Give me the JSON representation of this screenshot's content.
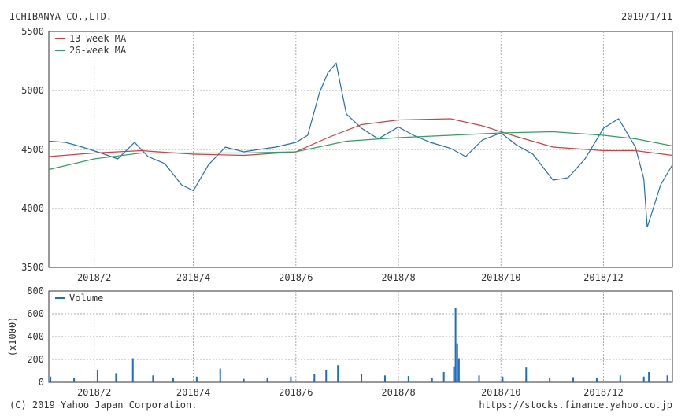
{
  "header": {
    "company": "ICHIBANYA CO.,LTD.",
    "date": "2019/1/11"
  },
  "footer": {
    "copyright": "(C) 2019 Yahoo Japan Corporation.",
    "url": "https://stocks.finance.yahoo.co.jp"
  },
  "colors": {
    "price": "#1f6fc0",
    "ma13": "#d04040",
    "ma26": "#2fa060",
    "volume": "#1f6fc0",
    "grid": "#aaaaaa",
    "frame": "#333333"
  },
  "chart_data": [
    {
      "type": "line",
      "x_range": [
        "2018-01-05",
        "2019-01-11"
      ],
      "ylim": [
        3500,
        5500
      ],
      "yticks": [
        3500,
        4000,
        4500,
        5000,
        5500
      ],
      "xtick_labels": [
        "2018/2",
        "2018/4",
        "2018/6",
        "2018/8",
        "2018/10",
        "2018/12"
      ],
      "xtick_dates": [
        "2018-02-01",
        "2018-04-01",
        "2018-06-01",
        "2018-08-01",
        "2018-10-01",
        "2018-12-01"
      ],
      "grid": true,
      "legend_position": "top-left",
      "series": [
        {
          "name": "",
          "dates": [
            "2018-01-05",
            "2018-01-15",
            "2018-01-25",
            "2018-02-05",
            "2018-02-15",
            "2018-02-25",
            "2018-03-05",
            "2018-03-15",
            "2018-03-25",
            "2018-04-01",
            "2018-04-10",
            "2018-04-20",
            "2018-05-01",
            "2018-05-10",
            "2018-05-20",
            "2018-06-01",
            "2018-06-08",
            "2018-06-15",
            "2018-06-20",
            "2018-06-25",
            "2018-07-01",
            "2018-07-10",
            "2018-07-20",
            "2018-08-01",
            "2018-08-10",
            "2018-08-20",
            "2018-09-01",
            "2018-09-10",
            "2018-09-20",
            "2018-10-01",
            "2018-10-10",
            "2018-10-20",
            "2018-11-01",
            "2018-11-10",
            "2018-11-20",
            "2018-12-01",
            "2018-12-10",
            "2018-12-20",
            "2018-12-25",
            "2018-12-27",
            "2019-01-04",
            "2019-01-11"
          ],
          "values": [
            4570,
            4560,
            4520,
            4470,
            4420,
            4560,
            4440,
            4380,
            4200,
            4150,
            4370,
            4520,
            4480,
            4500,
            4520,
            4560,
            4620,
            4980,
            5150,
            5230,
            4800,
            4680,
            4590,
            4690,
            4620,
            4560,
            4510,
            4440,
            4580,
            4640,
            4540,
            4460,
            4240,
            4260,
            4420,
            4680,
            4760,
            4520,
            4250,
            3840,
            4200,
            4370
          ]
        },
        {
          "name": "13-week MA",
          "dates": [
            "2018-01-05",
            "2018-02-01",
            "2018-03-01",
            "2018-04-01",
            "2018-05-01",
            "2018-06-01",
            "2018-06-20",
            "2018-07-10",
            "2018-08-01",
            "2018-09-01",
            "2018-09-20",
            "2018-10-10",
            "2018-11-01",
            "2018-12-01",
            "2018-12-20",
            "2019-01-11"
          ],
          "values": [
            4440,
            4470,
            4490,
            4460,
            4450,
            4480,
            4600,
            4710,
            4750,
            4760,
            4700,
            4610,
            4520,
            4490,
            4490,
            4450
          ]
        },
        {
          "name": "26-week MA",
          "dates": [
            "2018-01-05",
            "2018-02-01",
            "2018-03-01",
            "2018-04-01",
            "2018-05-01",
            "2018-06-01",
            "2018-07-01",
            "2018-08-01",
            "2018-09-01",
            "2018-10-01",
            "2018-11-01",
            "2018-12-01",
            "2018-12-20",
            "2019-01-11"
          ],
          "values": [
            4330,
            4420,
            4470,
            4470,
            4470,
            4480,
            4570,
            4600,
            4620,
            4640,
            4650,
            4620,
            4590,
            4530
          ]
        }
      ]
    },
    {
      "type": "bar",
      "ylim": [
        0,
        800
      ],
      "yticks": [
        0,
        200,
        400,
        600,
        800
      ],
      "ylabel": "(x1000)",
      "xtick_labels": [
        "2018/2",
        "2018/4",
        "2018/6",
        "2018/8",
        "2018/10",
        "2018/12"
      ],
      "grid": true,
      "legend_position": "top-left",
      "series": [
        {
          "name": "Volume",
          "dates": [
            "2018-01-06",
            "2018-01-20",
            "2018-02-03",
            "2018-02-14",
            "2018-02-24",
            "2018-03-08",
            "2018-03-20",
            "2018-04-03",
            "2018-04-17",
            "2018-05-01",
            "2018-05-15",
            "2018-05-29",
            "2018-06-12",
            "2018-06-19",
            "2018-06-26",
            "2018-07-10",
            "2018-07-24",
            "2018-08-07",
            "2018-08-21",
            "2018-08-28",
            "2018-09-03",
            "2018-09-04",
            "2018-09-05",
            "2018-09-06",
            "2018-09-18",
            "2018-10-02",
            "2018-10-16",
            "2018-10-30",
            "2018-11-13",
            "2018-11-27",
            "2018-12-11",
            "2018-12-25",
            "2018-12-28",
            "2019-01-08"
          ],
          "values": [
            50,
            40,
            110,
            80,
            210,
            60,
            40,
            50,
            120,
            30,
            40,
            50,
            70,
            110,
            150,
            70,
            60,
            55,
            40,
            90,
            140,
            650,
            340,
            210,
            60,
            50,
            130,
            40,
            45,
            35,
            60,
            50,
            90,
            60
          ]
        }
      ]
    }
  ]
}
